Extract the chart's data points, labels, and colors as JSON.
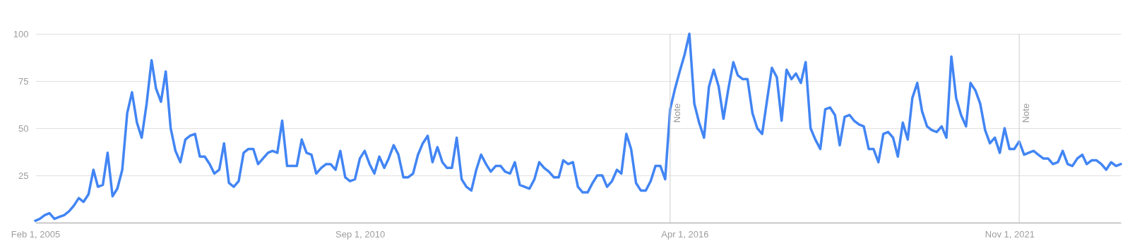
{
  "chart_data": {
    "type": "line",
    "x": [
      "2005-02",
      "2005-03",
      "2005-04",
      "2005-05",
      "2005-06",
      "2005-07",
      "2005-08",
      "2005-09",
      "2005-10",
      "2005-11",
      "2005-12",
      "2006-01",
      "2006-02",
      "2006-03",
      "2006-04",
      "2006-05",
      "2006-06",
      "2006-07",
      "2006-08",
      "2006-09",
      "2006-10",
      "2006-11",
      "2006-12",
      "2007-01",
      "2007-02",
      "2007-03",
      "2007-04",
      "2007-05",
      "2007-06",
      "2007-07",
      "2007-08",
      "2007-09",
      "2007-10",
      "2007-11",
      "2007-12",
      "2008-01",
      "2008-02",
      "2008-03",
      "2008-04",
      "2008-05",
      "2008-06",
      "2008-07",
      "2008-08",
      "2008-09",
      "2008-10",
      "2008-11",
      "2008-12",
      "2009-01",
      "2009-02",
      "2009-03",
      "2009-04",
      "2009-05",
      "2009-06",
      "2009-07",
      "2009-08",
      "2009-09",
      "2009-10",
      "2009-11",
      "2009-12",
      "2010-01",
      "2010-02",
      "2010-03",
      "2010-04",
      "2010-05",
      "2010-06",
      "2010-07",
      "2010-08",
      "2010-09",
      "2010-10",
      "2010-11",
      "2010-12",
      "2011-01",
      "2011-02",
      "2011-03",
      "2011-04",
      "2011-05",
      "2011-06",
      "2011-07",
      "2011-08",
      "2011-09",
      "2011-10",
      "2011-11",
      "2011-12",
      "2012-01",
      "2012-02",
      "2012-03",
      "2012-04",
      "2012-05",
      "2012-06",
      "2012-07",
      "2012-08",
      "2012-09",
      "2012-10",
      "2012-11",
      "2012-12",
      "2013-01",
      "2013-02",
      "2013-03",
      "2013-04",
      "2013-05",
      "2013-06",
      "2013-07",
      "2013-08",
      "2013-09",
      "2013-10",
      "2013-11",
      "2013-12",
      "2014-01",
      "2014-02",
      "2014-03",
      "2014-04",
      "2014-05",
      "2014-06",
      "2014-07",
      "2014-08",
      "2014-09",
      "2014-10",
      "2014-11",
      "2014-12",
      "2015-01",
      "2015-02",
      "2015-03",
      "2015-04",
      "2015-05",
      "2015-06",
      "2015-07",
      "2015-08",
      "2015-09",
      "2015-10",
      "2015-11",
      "2015-12",
      "2016-01",
      "2016-02",
      "2016-03",
      "2016-04",
      "2016-05",
      "2016-06",
      "2016-07",
      "2016-08",
      "2016-09",
      "2016-10",
      "2016-11",
      "2016-12",
      "2017-01",
      "2017-02",
      "2017-03",
      "2017-04",
      "2017-05",
      "2017-06",
      "2017-07",
      "2017-08",
      "2017-09",
      "2017-10",
      "2017-11",
      "2017-12",
      "2018-01",
      "2018-02",
      "2018-03",
      "2018-04",
      "2018-05",
      "2018-06",
      "2018-07",
      "2018-08",
      "2018-09",
      "2018-10",
      "2018-11",
      "2018-12",
      "2019-01",
      "2019-02",
      "2019-03",
      "2019-04",
      "2019-05",
      "2019-06",
      "2019-07",
      "2019-08",
      "2019-09",
      "2019-10",
      "2019-11",
      "2019-12",
      "2020-01",
      "2020-02",
      "2020-03",
      "2020-04",
      "2020-05",
      "2020-06",
      "2020-07",
      "2020-08",
      "2020-09",
      "2020-10",
      "2020-11",
      "2020-12",
      "2021-01",
      "2021-02",
      "2021-03",
      "2021-04",
      "2021-05",
      "2021-06",
      "2021-07",
      "2021-08",
      "2021-09",
      "2021-10",
      "2021-11",
      "2021-12",
      "2022-01",
      "2022-02",
      "2022-03",
      "2022-04",
      "2022-05",
      "2022-06",
      "2022-07",
      "2022-08",
      "2022-09",
      "2022-10",
      "2022-11",
      "2022-12",
      "2023-01",
      "2023-02",
      "2023-03",
      "2023-04",
      "2023-05",
      "2023-06",
      "2023-07",
      "2023-08",
      "2023-09",
      "2023-10"
    ],
    "series": [
      {
        "color": "#4285f4",
        "values": [
          1,
          2,
          4,
          5,
          2,
          3,
          4,
          6,
          9,
          13,
          11,
          15,
          28,
          19,
          20,
          37,
          14,
          18,
          28,
          58,
          69,
          53,
          45,
          63,
          86,
          71,
          64,
          80,
          50,
          38,
          32,
          44,
          46,
          47,
          35,
          35,
          31,
          26,
          28,
          42,
          21,
          19,
          22,
          37,
          39,
          39,
          31,
          34,
          37,
          38,
          37,
          54,
          30,
          30,
          30,
          44,
          37,
          36,
          26,
          29,
          31,
          31,
          28,
          38,
          24,
          22,
          23,
          34,
          38,
          31,
          26,
          35,
          29,
          34,
          41,
          36,
          24,
          24,
          26,
          36,
          42,
          46,
          32,
          40,
          32,
          29,
          29,
          45,
          23,
          19,
          17,
          28,
          36,
          31,
          27,
          30,
          30,
          27,
          26,
          32,
          20,
          19,
          18,
          23,
          32,
          29,
          27,
          24,
          24,
          33,
          31,
          32,
          19,
          16,
          16,
          21,
          25,
          25,
          19,
          22,
          28,
          26,
          47,
          39,
          21,
          17,
          17,
          22,
          30,
          30,
          23,
          60,
          71,
          80,
          89,
          100,
          63,
          53,
          45,
          72,
          81,
          72,
          55,
          71,
          85,
          78,
          76,
          76,
          58,
          50,
          47,
          65,
          82,
          77,
          54,
          81,
          76,
          79,
          74,
          85,
          50,
          44,
          39,
          60,
          61,
          57,
          41,
          56,
          57,
          54,
          52,
          51,
          39,
          39,
          32,
          47,
          48,
          45,
          35,
          53,
          44,
          66,
          74,
          59,
          51,
          49,
          48,
          51,
          45,
          88,
          66,
          57,
          51,
          74,
          70,
          63,
          49,
          42,
          45,
          37,
          50,
          39,
          39,
          43,
          36,
          37,
          38,
          36,
          34,
          34,
          31,
          32,
          38,
          31,
          30,
          34,
          36,
          31,
          33,
          33,
          31,
          28,
          32,
          30,
          31
        ]
      }
    ],
    "xlim": [
      "2005-02",
      "2023-10"
    ],
    "xticks": [
      {
        "value": "2005-02",
        "label": "Feb 1, 2005"
      },
      {
        "value": "2010-09",
        "label": "Sep 1, 2010"
      },
      {
        "value": "2016-04",
        "label": "Apr 1, 2016"
      },
      {
        "value": "2021-11",
        "label": "Nov 1, 2021"
      }
    ],
    "ylim": [
      0,
      100
    ],
    "yticks": [
      25,
      50,
      75,
      100
    ],
    "grid": "y",
    "ref_lines": [
      {
        "axis": "x",
        "value": "2016-01",
        "label": "Note",
        "color": "#cccccc"
      },
      {
        "axis": "x",
        "value": "2022-01",
        "label": "Note",
        "color": "#cccccc"
      }
    ]
  }
}
